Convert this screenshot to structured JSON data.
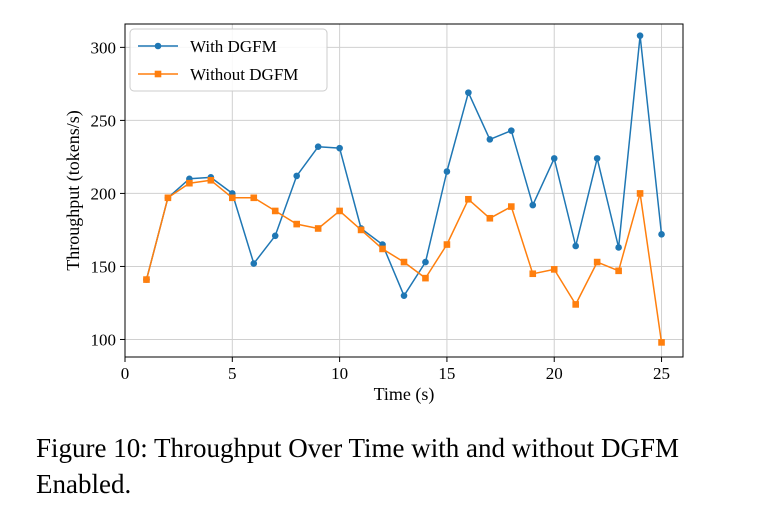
{
  "chart_data": {
    "type": "line",
    "title": "",
    "xlabel": "Time (s)",
    "ylabel": "Throughput (tokens/s)",
    "xlim": [
      0,
      26
    ],
    "ylim": [
      88,
      316
    ],
    "xticks": [
      0,
      5,
      10,
      15,
      20,
      25
    ],
    "yticks": [
      100,
      150,
      200,
      250,
      300
    ],
    "grid": true,
    "legend_position": "top-left",
    "series": [
      {
        "name": "With DGFM",
        "color": "#1f77b4",
        "marker": "circle",
        "x": [
          1,
          2,
          3,
          4,
          5,
          6,
          7,
          8,
          9,
          10,
          11,
          12,
          13,
          14,
          15,
          16,
          17,
          18,
          19,
          20,
          21,
          22,
          23,
          24,
          25
        ],
        "values": [
          141,
          197,
          210,
          211,
          200,
          152,
          171,
          212,
          232,
          231,
          176,
          165,
          130,
          153,
          215,
          269,
          237,
          243,
          192,
          224,
          164,
          224,
          163,
          308,
          172
        ]
      },
      {
        "name": "Without DGFM",
        "color": "#ff7f0e",
        "marker": "square",
        "x": [
          1,
          2,
          3,
          4,
          5,
          6,
          7,
          8,
          9,
          10,
          11,
          12,
          13,
          14,
          15,
          16,
          17,
          18,
          19,
          20,
          21,
          22,
          23,
          24,
          25
        ],
        "values": [
          141,
          197,
          207,
          209,
          197,
          197,
          188,
          179,
          176,
          188,
          175,
          162,
          153,
          142,
          165,
          196,
          183,
          191,
          145,
          148,
          124,
          153,
          147,
          200,
          98
        ]
      }
    ]
  },
  "caption": "Figure 10: Throughput Over Time with and without DGFM Enabled."
}
